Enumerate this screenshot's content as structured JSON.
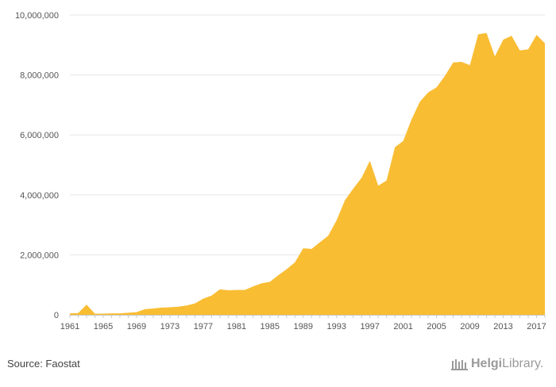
{
  "chart_data": {
    "type": "area",
    "x": [
      1961,
      1962,
      1963,
      1964,
      1965,
      1966,
      1967,
      1968,
      1969,
      1970,
      1971,
      1972,
      1973,
      1974,
      1975,
      1976,
      1977,
      1978,
      1979,
      1980,
      1981,
      1982,
      1983,
      1984,
      1985,
      1986,
      1987,
      1988,
      1989,
      1990,
      1991,
      1992,
      1993,
      1994,
      1995,
      1996,
      1997,
      1998,
      1999,
      2000,
      2001,
      2002,
      2003,
      2004,
      2005,
      2006,
      2007,
      2008,
      2009,
      2010,
      2011,
      2012,
      2013,
      2014,
      2015,
      2016,
      2017,
      2018
    ],
    "values": [
      50000,
      60000,
      340000,
      40000,
      40000,
      50000,
      50000,
      70000,
      90000,
      190000,
      210000,
      240000,
      250000,
      270000,
      310000,
      380000,
      540000,
      640000,
      850000,
      820000,
      830000,
      830000,
      950000,
      1050000,
      1100000,
      1320000,
      1520000,
      1750000,
      2220000,
      2200000,
      2420000,
      2640000,
      3150000,
      3820000,
      4210000,
      4570000,
      5140000,
      4310000,
      4480000,
      5590000,
      5800000,
      6520000,
      7110000,
      7420000,
      7590000,
      7970000,
      8420000,
      8440000,
      8330000,
      9360000,
      9400000,
      8620000,
      9180000,
      9310000,
      8820000,
      8860000,
      9340000,
      9060000
    ],
    "x_tick_labels": [
      "1961",
      "1965",
      "1969",
      "1973",
      "1977",
      "1981",
      "1985",
      "1989",
      "1993",
      "1997",
      "2001",
      "2005",
      "2009",
      "2013",
      "2017"
    ],
    "y_tick_labels": [
      "0",
      "2,000,000",
      "4,000,000",
      "6,000,000",
      "8,000,000",
      "10,000,000"
    ],
    "ylim": [
      0,
      10000000
    ],
    "xlim": [
      1961,
      2018
    ],
    "grid": "horizontal",
    "color": "#f9bd33",
    "title": "",
    "xlabel": "",
    "ylabel": ""
  },
  "footer": {
    "source": "Source: Faostat",
    "logo_text_strong": "Helgi",
    "logo_text": "Library."
  }
}
